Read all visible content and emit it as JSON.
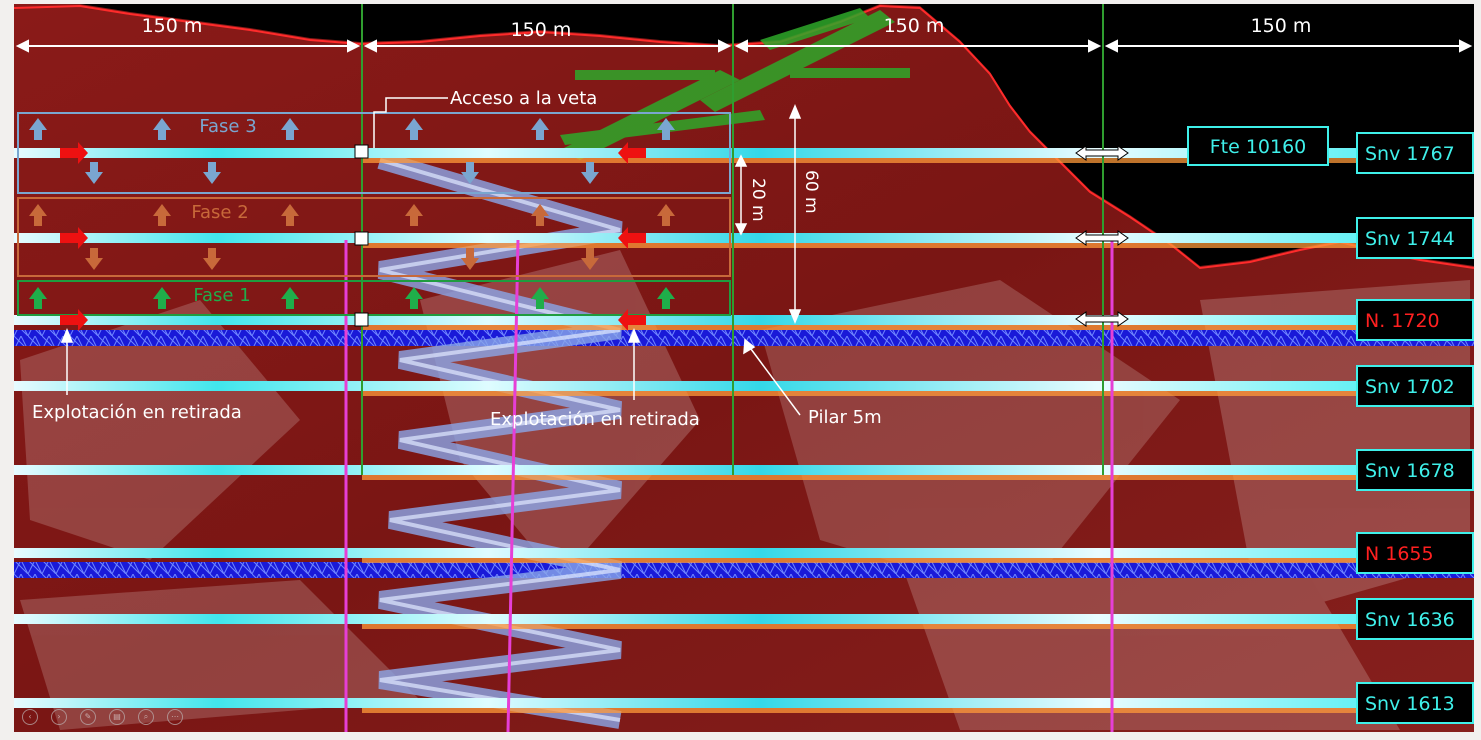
{
  "dimensions": {
    "top_spans": [
      "150 m",
      "150 m",
      "150 m",
      "150 m"
    ],
    "vertical_20": "20 m",
    "vertical_60": "60 m"
  },
  "labels": {
    "access": "Acceso a la veta",
    "retreat_left": "Explotación en retirada",
    "retreat_center": "Explotación en retirada",
    "pillar": "Pilar 5m",
    "front": "Fte 10160"
  },
  "phases": [
    {
      "label": "Fase 3",
      "color": "#7aa6d0"
    },
    {
      "label": "Fase 2",
      "color": "#c8693a"
    },
    {
      "label": "Fase 1",
      "color": "#1fae4a"
    }
  ],
  "levels": [
    {
      "label": "Snv 1767",
      "color": "#3ff0ea"
    },
    {
      "label": "Snv  1744",
      "color": "#3ff0ea"
    },
    {
      "label": "N.  1720",
      "color": "#ff2020"
    },
    {
      "label": "Snv 1702",
      "color": "#3ff0ea"
    },
    {
      "label": "Snv 1678",
      "color": "#3ff0ea"
    },
    {
      "label": "N 1655",
      "color": "#ff2020"
    },
    {
      "label": "Snv 1636",
      "color": "#3ff0ea"
    },
    {
      "label": "Snv 1613",
      "color": "#3ff0ea"
    }
  ],
  "toolbar": {
    "icons": [
      "previous-icon",
      "next-icon",
      "pen-icon",
      "slides-icon",
      "zoom-icon",
      "more-icon"
    ],
    "glyphs": [
      "‹",
      "›",
      "✎",
      "▤",
      "⌕",
      "⋯"
    ]
  }
}
